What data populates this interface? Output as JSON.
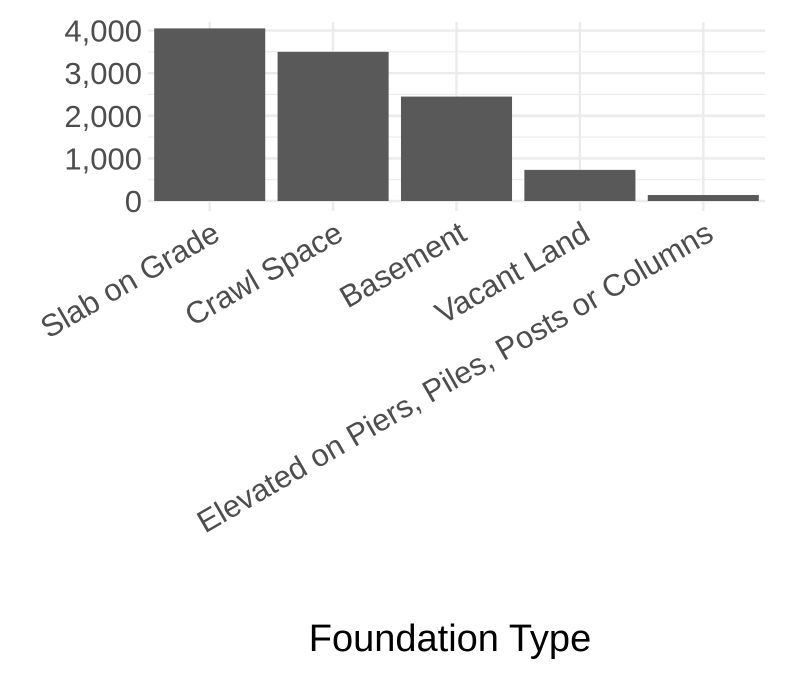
{
  "chart_data": {
    "type": "bar",
    "title": "",
    "xlabel": "Foundation Type",
    "ylabel": "",
    "categories": [
      "Slab on Grade",
      "Crawl Space",
      "Basement",
      "Vacant Land",
      "Elevated on Piers, Piles, Posts or Columns"
    ],
    "values": [
      4050,
      3500,
      2450,
      730,
      140
    ],
    "ylim": [
      0,
      4200
    ],
    "yticks": [
      0,
      1000,
      2000,
      3000,
      4000
    ],
    "ytick_labels": [
      "0",
      "1,000",
      "2,000",
      "3,000",
      "4,000"
    ],
    "grid": true,
    "legend": "none",
    "bar_color": "#595959",
    "grid_color": "#ebebeb"
  }
}
